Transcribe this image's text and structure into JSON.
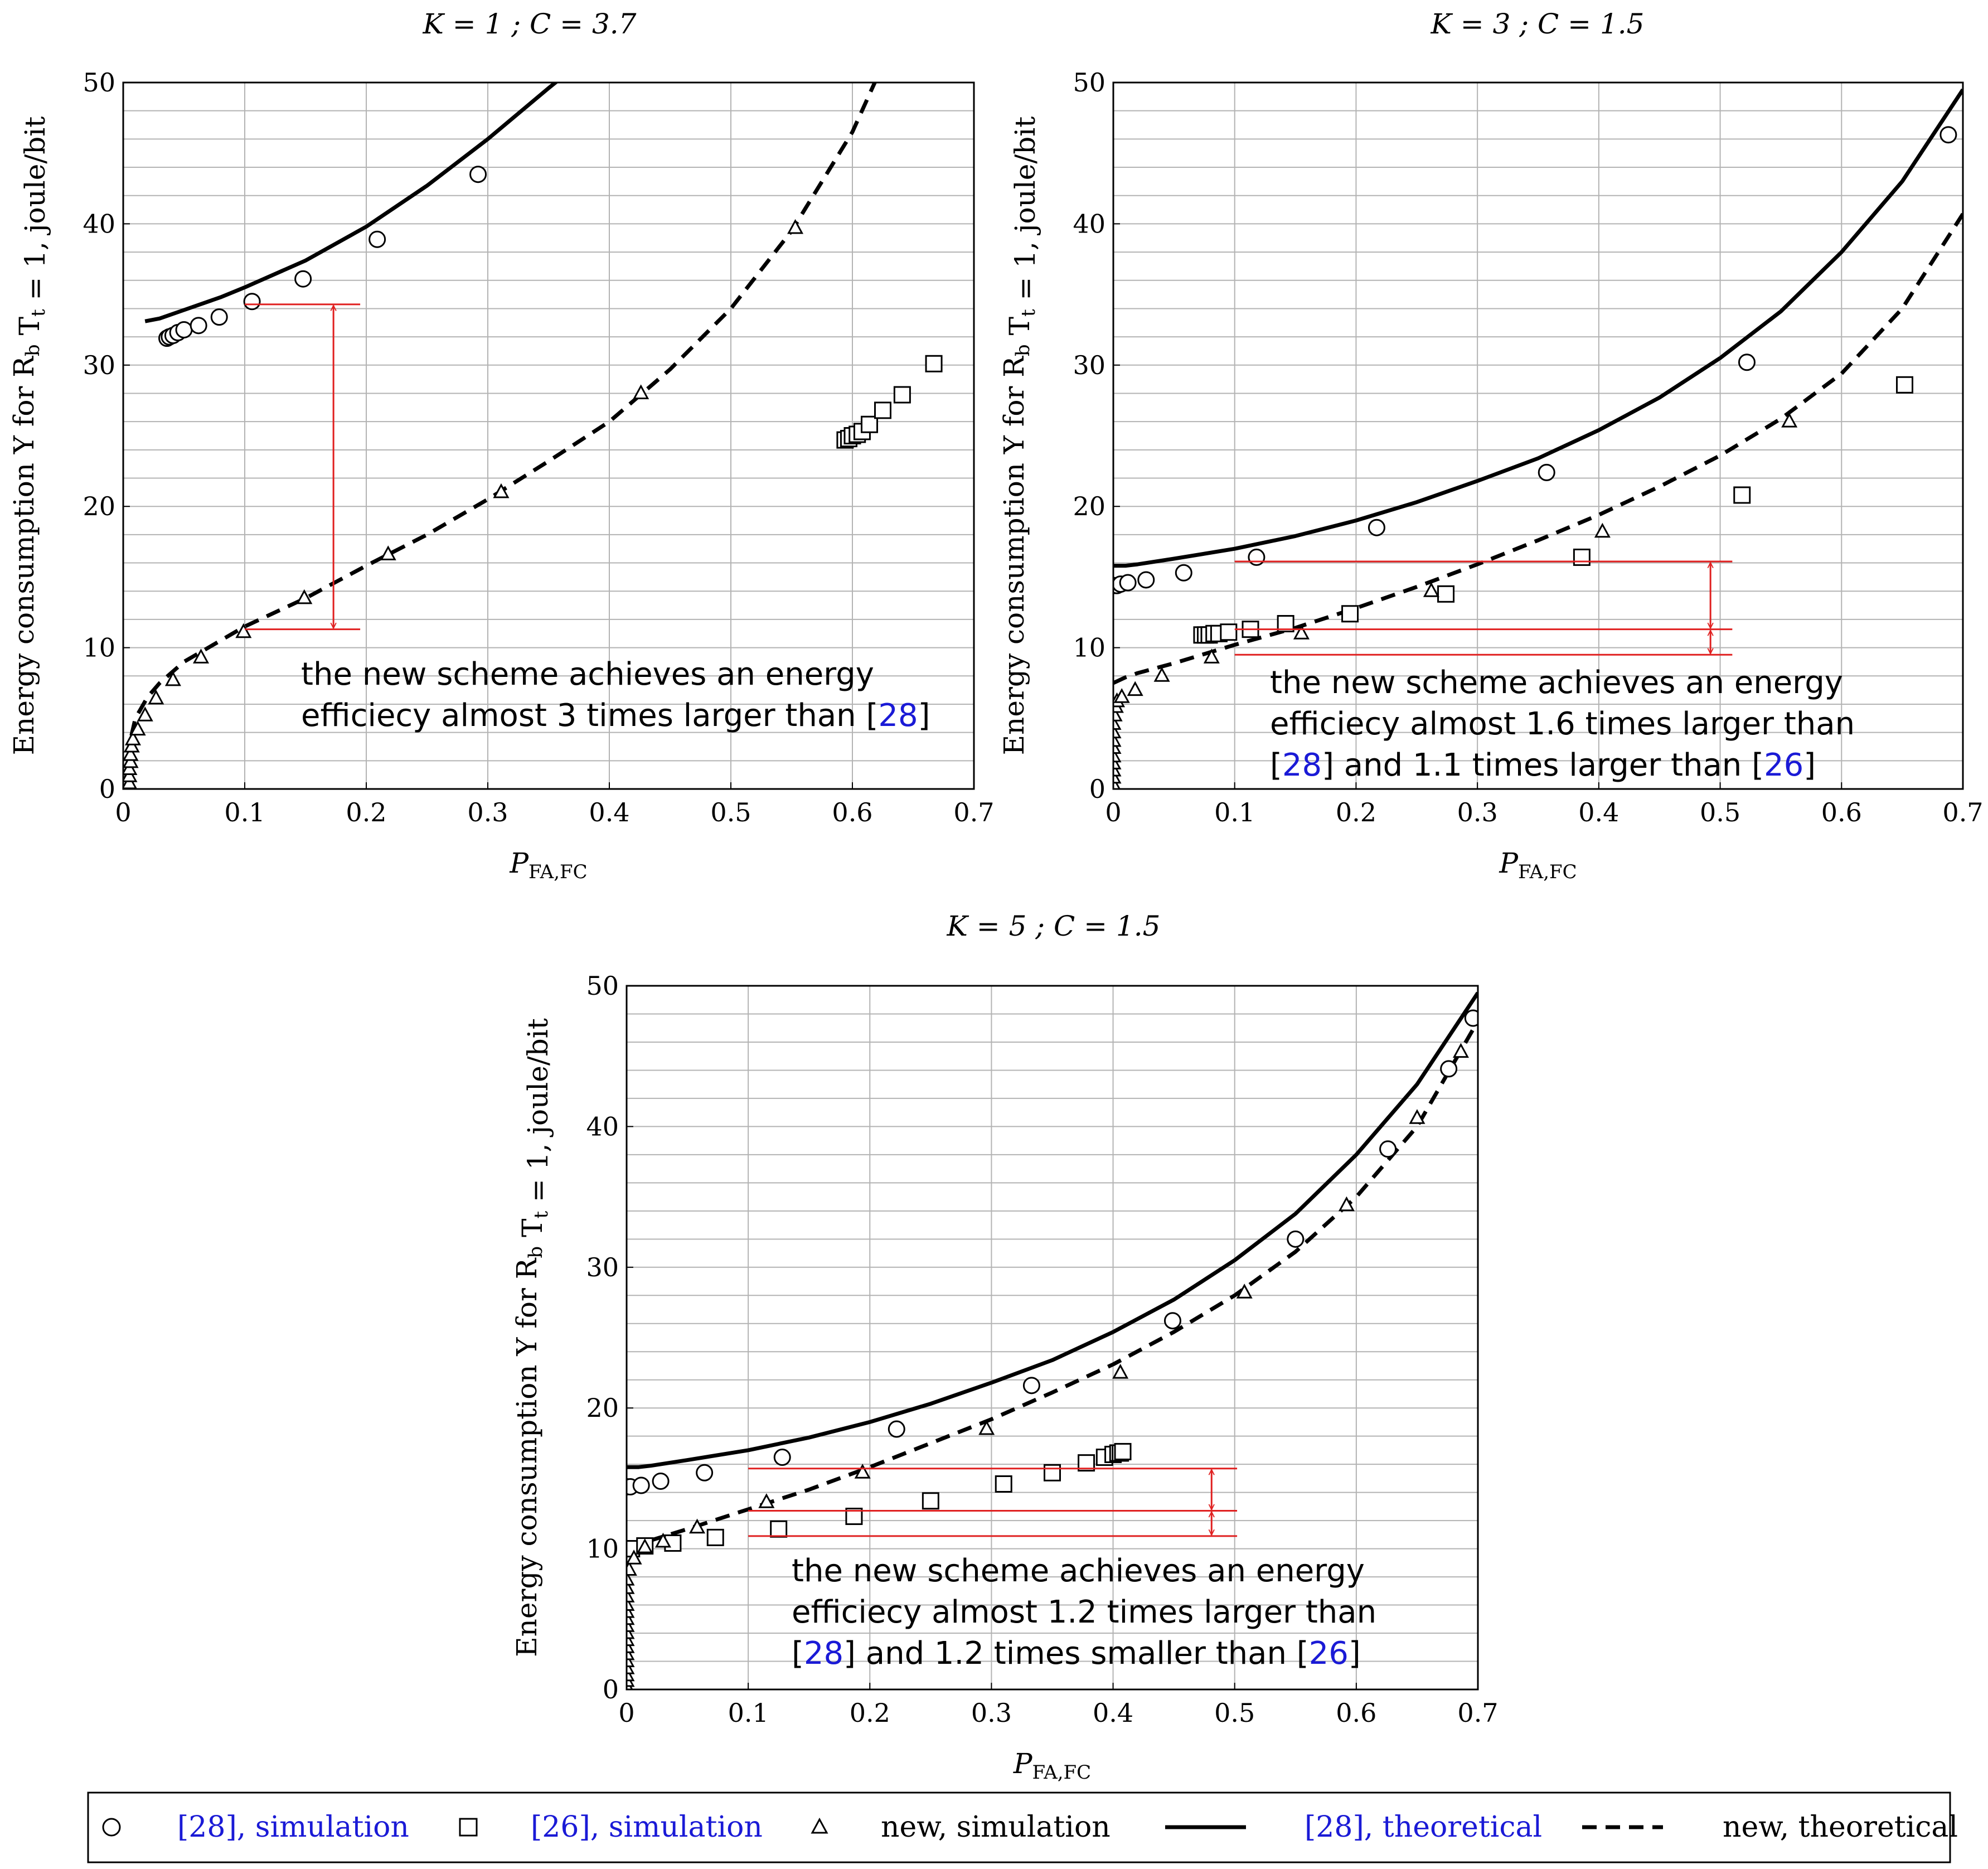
{
  "colors": {
    "black": "#000000",
    "red": "#e02020",
    "grid": "#b3b3b3",
    "link_blue": "#1a1ad6"
  },
  "axis_labels": {
    "xlabel": "P_FA,FC",
    "ylabel": "Energy consumption Υ for R_b T_t = 1, joule/bit"
  },
  "legend": {
    "items": [
      {
        "marker": "circle-icon",
        "ref": "28",
        "label": ", simulation"
      },
      {
        "marker": "square-icon",
        "ref": "26",
        "label": ", simulation"
      },
      {
        "marker": "triangle-icon",
        "ref": "",
        "label": "new, simulation"
      },
      {
        "marker": "solid-line-icon",
        "ref": "28",
        "label": ", theoretical"
      },
      {
        "marker": "dashed-line-icon",
        "ref": "",
        "label": "new, theoretical"
      }
    ]
  },
  "chart_data": [
    {
      "type": "line",
      "title": "K = 1 ; C = 3.7",
      "xlabel": "P_FA,FC",
      "ylabel": "Energy consumption Υ for R_b T_t = 1, joule/bit",
      "xlim": [
        0,
        0.7
      ],
      "ylim": [
        0,
        50
      ],
      "x_ticks": [
        0,
        0.1,
        0.2,
        0.3,
        0.4,
        0.5,
        0.6,
        0.7
      ],
      "x_tick_labels": [
        "0",
        "0.1",
        "0.2",
        "0.3",
        "0.4",
        "0.5",
        "0.6",
        "0.7"
      ],
      "y_ticks": [
        0,
        10,
        20,
        30,
        40,
        50
      ],
      "y_tick_labels": [
        "0",
        "10",
        "20",
        "30",
        "40",
        "50"
      ],
      "grid": true,
      "series": [
        {
          "name": "[28], simulation",
          "style": "circle",
          "x": [
            0.036,
            0.038,
            0.041,
            0.045,
            0.05,
            0.062,
            0.079,
            0.106,
            0.148,
            0.209,
            0.292
          ],
          "y": [
            31.9,
            32.0,
            32.1,
            32.3,
            32.5,
            32.8,
            33.4,
            34.5,
            36.1,
            38.9,
            43.5
          ]
        },
        {
          "name": "[26], simulation",
          "style": "square",
          "x": [
            0.594,
            0.597,
            0.6,
            0.604,
            0.608,
            0.614,
            0.625,
            0.641,
            0.667
          ],
          "y": [
            24.7,
            24.8,
            25.0,
            25.1,
            25.3,
            25.8,
            26.8,
            27.9,
            30.1
          ]
        },
        {
          "name": "new, simulation",
          "style": "triangle",
          "x": [
            0.005,
            0.005,
            0.005,
            0.006,
            0.006,
            0.007,
            0.008,
            0.012,
            0.018,
            0.027,
            0.041,
            0.064,
            0.099,
            0.149,
            0.218,
            0.311,
            0.426,
            0.553
          ],
          "y": [
            0.4,
            0.9,
            1.4,
            1.9,
            2.4,
            3.0,
            3.5,
            4.2,
            5.2,
            6.4,
            7.7,
            9.3,
            11.1,
            13.5,
            16.6,
            21.0,
            28.0,
            39.7
          ]
        },
        {
          "name": "[28], theoretical",
          "style": "solid",
          "x": [
            0.018,
            0.03,
            0.05,
            0.08,
            0.1,
            0.15,
            0.2,
            0.25,
            0.3,
            0.35,
            0.37
          ],
          "y": [
            33.1,
            33.3,
            33.9,
            34.8,
            35.5,
            37.4,
            39.8,
            42.7,
            46.0,
            49.6,
            51.0
          ]
        },
        {
          "name": "new, theoretical",
          "style": "dashed",
          "x": [
            0.002,
            0.006,
            0.01,
            0.02,
            0.03,
            0.05,
            0.07,
            0.1,
            0.15,
            0.2,
            0.25,
            0.3,
            0.35,
            0.4,
            0.45,
            0.5,
            0.55,
            0.6,
            0.62
          ],
          "y": [
            0.5,
            3.5,
            5.0,
            6.5,
            7.5,
            9.0,
            10.0,
            11.5,
            13.5,
            15.8,
            18.0,
            20.5,
            23.2,
            26.0,
            29.7,
            34.0,
            39.5,
            46.5,
            50.3
          ]
        }
      ],
      "annotation_lines": [
        {
          "x1": 0.1,
          "x2": 0.195,
          "y": 34.3
        },
        {
          "x1": 0.1,
          "x2": 0.195,
          "y": 11.3
        }
      ],
      "arrows": [
        {
          "x": 0.173,
          "y_top": 34.3,
          "y_bottom": 11.3
        }
      ],
      "annotation": {
        "line1": "the new scheme achieves an energy",
        "line2a": "efficiecy almost 3 times larger than [",
        "ref2": "28",
        "line2b": "]"
      }
    },
    {
      "type": "line",
      "title": "K = 3 ; C = 1.5",
      "xlabel": "P_FA,FC",
      "ylabel": "Energy consumption Υ for R_b T_t = 1, joule/bit",
      "xlim": [
        0,
        0.7
      ],
      "ylim": [
        0,
        50
      ],
      "x_ticks": [
        0,
        0.1,
        0.2,
        0.3,
        0.4,
        0.5,
        0.6,
        0.7
      ],
      "x_tick_labels": [
        "0",
        "0.1",
        "0.2",
        "0.3",
        "0.4",
        "0.5",
        "0.6",
        "0.7"
      ],
      "y_ticks": [
        0,
        10,
        20,
        30,
        40,
        50
      ],
      "y_tick_labels": [
        "0",
        "10",
        "20",
        "30",
        "40",
        "50"
      ],
      "grid": true,
      "series": [
        {
          "name": "[28], simulation",
          "style": "circle",
          "x": [
            0.0,
            0.003,
            0.006,
            0.012,
            0.027,
            0.058,
            0.118,
            0.217,
            0.357,
            0.522,
            0.688
          ],
          "y": [
            14.4,
            14.4,
            14.5,
            14.6,
            14.8,
            15.3,
            16.4,
            18.5,
            22.4,
            30.2,
            46.3
          ]
        },
        {
          "name": "[26], simulation",
          "style": "square",
          "x": [
            0.073,
            0.076,
            0.079,
            0.083,
            0.087,
            0.095,
            0.113,
            0.142,
            0.195,
            0.274,
            0.386,
            0.518,
            0.652
          ],
          "y": [
            10.9,
            10.9,
            10.9,
            11.0,
            11.0,
            11.1,
            11.3,
            11.7,
            12.4,
            13.8,
            16.4,
            20.8,
            28.6
          ]
        },
        {
          "name": "new, simulation",
          "style": "triangle",
          "x": [
            0.0,
            0.0,
            0.0,
            0.0,
            0.0,
            0.0,
            0.0,
            0.0,
            0.0,
            0.001,
            0.002,
            0.003,
            0.007,
            0.018,
            0.04,
            0.081,
            0.155,
            0.262,
            0.403,
            0.557
          ],
          "y": [
            0.3,
            0.8,
            1.3,
            1.8,
            2.3,
            2.9,
            3.4,
            4.0,
            4.6,
            5.2,
            5.8,
            6.2,
            6.5,
            7.0,
            8.0,
            9.3,
            11.0,
            14.0,
            18.2,
            26.0
          ]
        },
        {
          "name": "[28], theoretical",
          "style": "solid",
          "x": [
            0.0,
            0.01,
            0.02,
            0.05,
            0.1,
            0.15,
            0.2,
            0.25,
            0.3,
            0.35,
            0.4,
            0.45,
            0.5,
            0.55,
            0.6,
            0.65,
            0.7
          ],
          "y": [
            15.8,
            15.8,
            15.9,
            16.3,
            17.0,
            17.9,
            19.0,
            20.3,
            21.8,
            23.4,
            25.4,
            27.7,
            30.5,
            33.8,
            38.0,
            43.0,
            49.5
          ]
        },
        {
          "name": "new, theoretical",
          "style": "dashed",
          "x": [
            0.0,
            0.01,
            0.02,
            0.05,
            0.1,
            0.15,
            0.2,
            0.25,
            0.3,
            0.35,
            0.4,
            0.45,
            0.5,
            0.55,
            0.6,
            0.65,
            0.7
          ],
          "y": [
            7.5,
            7.9,
            8.2,
            8.9,
            10.2,
            11.4,
            12.8,
            14.3,
            15.9,
            17.6,
            19.4,
            21.4,
            23.6,
            26.2,
            29.4,
            34.0,
            40.7
          ]
        }
      ],
      "annotation_lines": [
        {
          "x1": 0.1,
          "x2": 0.51,
          "y": 16.1
        },
        {
          "x1": 0.1,
          "x2": 0.51,
          "y": 11.3
        },
        {
          "x1": 0.1,
          "x2": 0.51,
          "y": 9.5
        }
      ],
      "arrows": [
        {
          "x": 0.492,
          "y_top": 16.1,
          "y_bottom": 11.3
        },
        {
          "x": 0.492,
          "y_top": 11.3,
          "y_bottom": 9.5
        }
      ],
      "annotation": {
        "line1": "the new scheme achieves an energy",
        "line2": "efficiecy almost 1.6 times larger than",
        "line3a": "[",
        "ref3a": "28",
        "line3b": "] and 1.1 times larger than [",
        "ref3b": "26",
        "line3c": "]"
      }
    },
    {
      "type": "line",
      "title": "K = 5 ; C = 1.5",
      "xlabel": "P_FA,FC",
      "ylabel": "Energy consumption Υ for R_b T_t = 1, joule/bit",
      "xlim": [
        0,
        0.7
      ],
      "ylim": [
        0,
        50
      ],
      "x_ticks": [
        0,
        0.1,
        0.2,
        0.3,
        0.4,
        0.5,
        0.6,
        0.7
      ],
      "x_tick_labels": [
        "0",
        "0.1",
        "0.2",
        "0.3",
        "0.4",
        "0.5",
        "0.6",
        "0.7"
      ],
      "y_ticks": [
        0,
        10,
        20,
        30,
        40,
        50
      ],
      "y_tick_labels": [
        "0",
        "10",
        "20",
        "30",
        "40",
        "50"
      ],
      "grid": true,
      "series": [
        {
          "name": "[28], simulation",
          "style": "circle",
          "x": [
            0.0,
            0.003,
            0.012,
            0.028,
            0.064,
            0.128,
            0.222,
            0.333,
            0.449,
            0.55,
            0.626,
            0.676,
            0.696
          ],
          "y": [
            14.4,
            14.4,
            14.5,
            14.8,
            15.4,
            16.5,
            18.5,
            21.6,
            26.2,
            32.0,
            38.4,
            44.1,
            47.7
          ]
        },
        {
          "name": "[26], simulation",
          "style": "square",
          "x": [
            0.0,
            0.004,
            0.015,
            0.038,
            0.073,
            0.125,
            0.187,
            0.25,
            0.31,
            0.35,
            0.378,
            0.393,
            0.4,
            0.404,
            0.406,
            0.408
          ],
          "y": [
            10.0,
            10.0,
            10.2,
            10.4,
            10.8,
            11.4,
            12.3,
            13.4,
            14.6,
            15.4,
            16.1,
            16.5,
            16.7,
            16.8,
            16.8,
            16.9
          ]
        },
        {
          "name": "new, simulation",
          "style": "triangle",
          "x": [
            0.0,
            0.0,
            0.0,
            0.0,
            0.0,
            0.0,
            0.0,
            0.0,
            0.0,
            0.0,
            0.0,
            0.0,
            0.0,
            0.0,
            0.0,
            0.0,
            0.002,
            0.006,
            0.015,
            0.03,
            0.058,
            0.115,
            0.194,
            0.296,
            0.406,
            0.508,
            0.592,
            0.65,
            0.686
          ],
          "y": [
            0.2,
            0.6,
            1.0,
            1.5,
            2.0,
            2.5,
            3.0,
            3.5,
            4.0,
            4.5,
            5.0,
            5.5,
            6.0,
            6.6,
            7.2,
            7.8,
            8.5,
            9.3,
            10.1,
            10.5,
            11.5,
            13.3,
            15.4,
            18.5,
            22.5,
            28.2,
            34.4,
            40.6,
            45.3
          ]
        },
        {
          "name": "[28], theoretical",
          "style": "solid",
          "x": [
            0.0,
            0.01,
            0.02,
            0.05,
            0.1,
            0.15,
            0.2,
            0.25,
            0.3,
            0.35,
            0.4,
            0.45,
            0.5,
            0.55,
            0.6,
            0.65,
            0.7
          ],
          "y": [
            15.8,
            15.8,
            15.9,
            16.3,
            17.0,
            17.9,
            19.0,
            20.3,
            21.8,
            23.4,
            25.4,
            27.7,
            30.5,
            33.8,
            38.0,
            43.0,
            49.5
          ]
        },
        {
          "name": "new, theoretical",
          "style": "dashed",
          "x": [
            0.0,
            0.01,
            0.02,
            0.05,
            0.1,
            0.15,
            0.2,
            0.25,
            0.3,
            0.35,
            0.4,
            0.45,
            0.5,
            0.55,
            0.6,
            0.65,
            0.7
          ],
          "y": [
            10.0,
            10.3,
            10.6,
            11.4,
            12.8,
            14.2,
            15.8,
            17.5,
            19.2,
            21.1,
            23.1,
            25.4,
            28.0,
            31.1,
            35.0,
            40.0,
            47.5
          ]
        }
      ],
      "annotation_lines": [
        {
          "x1": 0.1,
          "x2": 0.502,
          "y": 15.7
        },
        {
          "x1": 0.1,
          "x2": 0.502,
          "y": 12.7
        },
        {
          "x1": 0.1,
          "x2": 0.502,
          "y": 10.9
        }
      ],
      "arrows": [
        {
          "x": 0.481,
          "y_top": 15.7,
          "y_bottom": 12.7
        },
        {
          "x": 0.481,
          "y_top": 12.7,
          "y_bottom": 10.9
        }
      ],
      "annotation": {
        "line1": "the new scheme achieves an energy",
        "line2": "efficiecy almost 1.2 times larger than",
        "line3a": "[",
        "ref3a": "28",
        "line3b": "] and 1.2 times smaller than [",
        "ref3b": "26",
        "line3c": "]"
      }
    }
  ]
}
